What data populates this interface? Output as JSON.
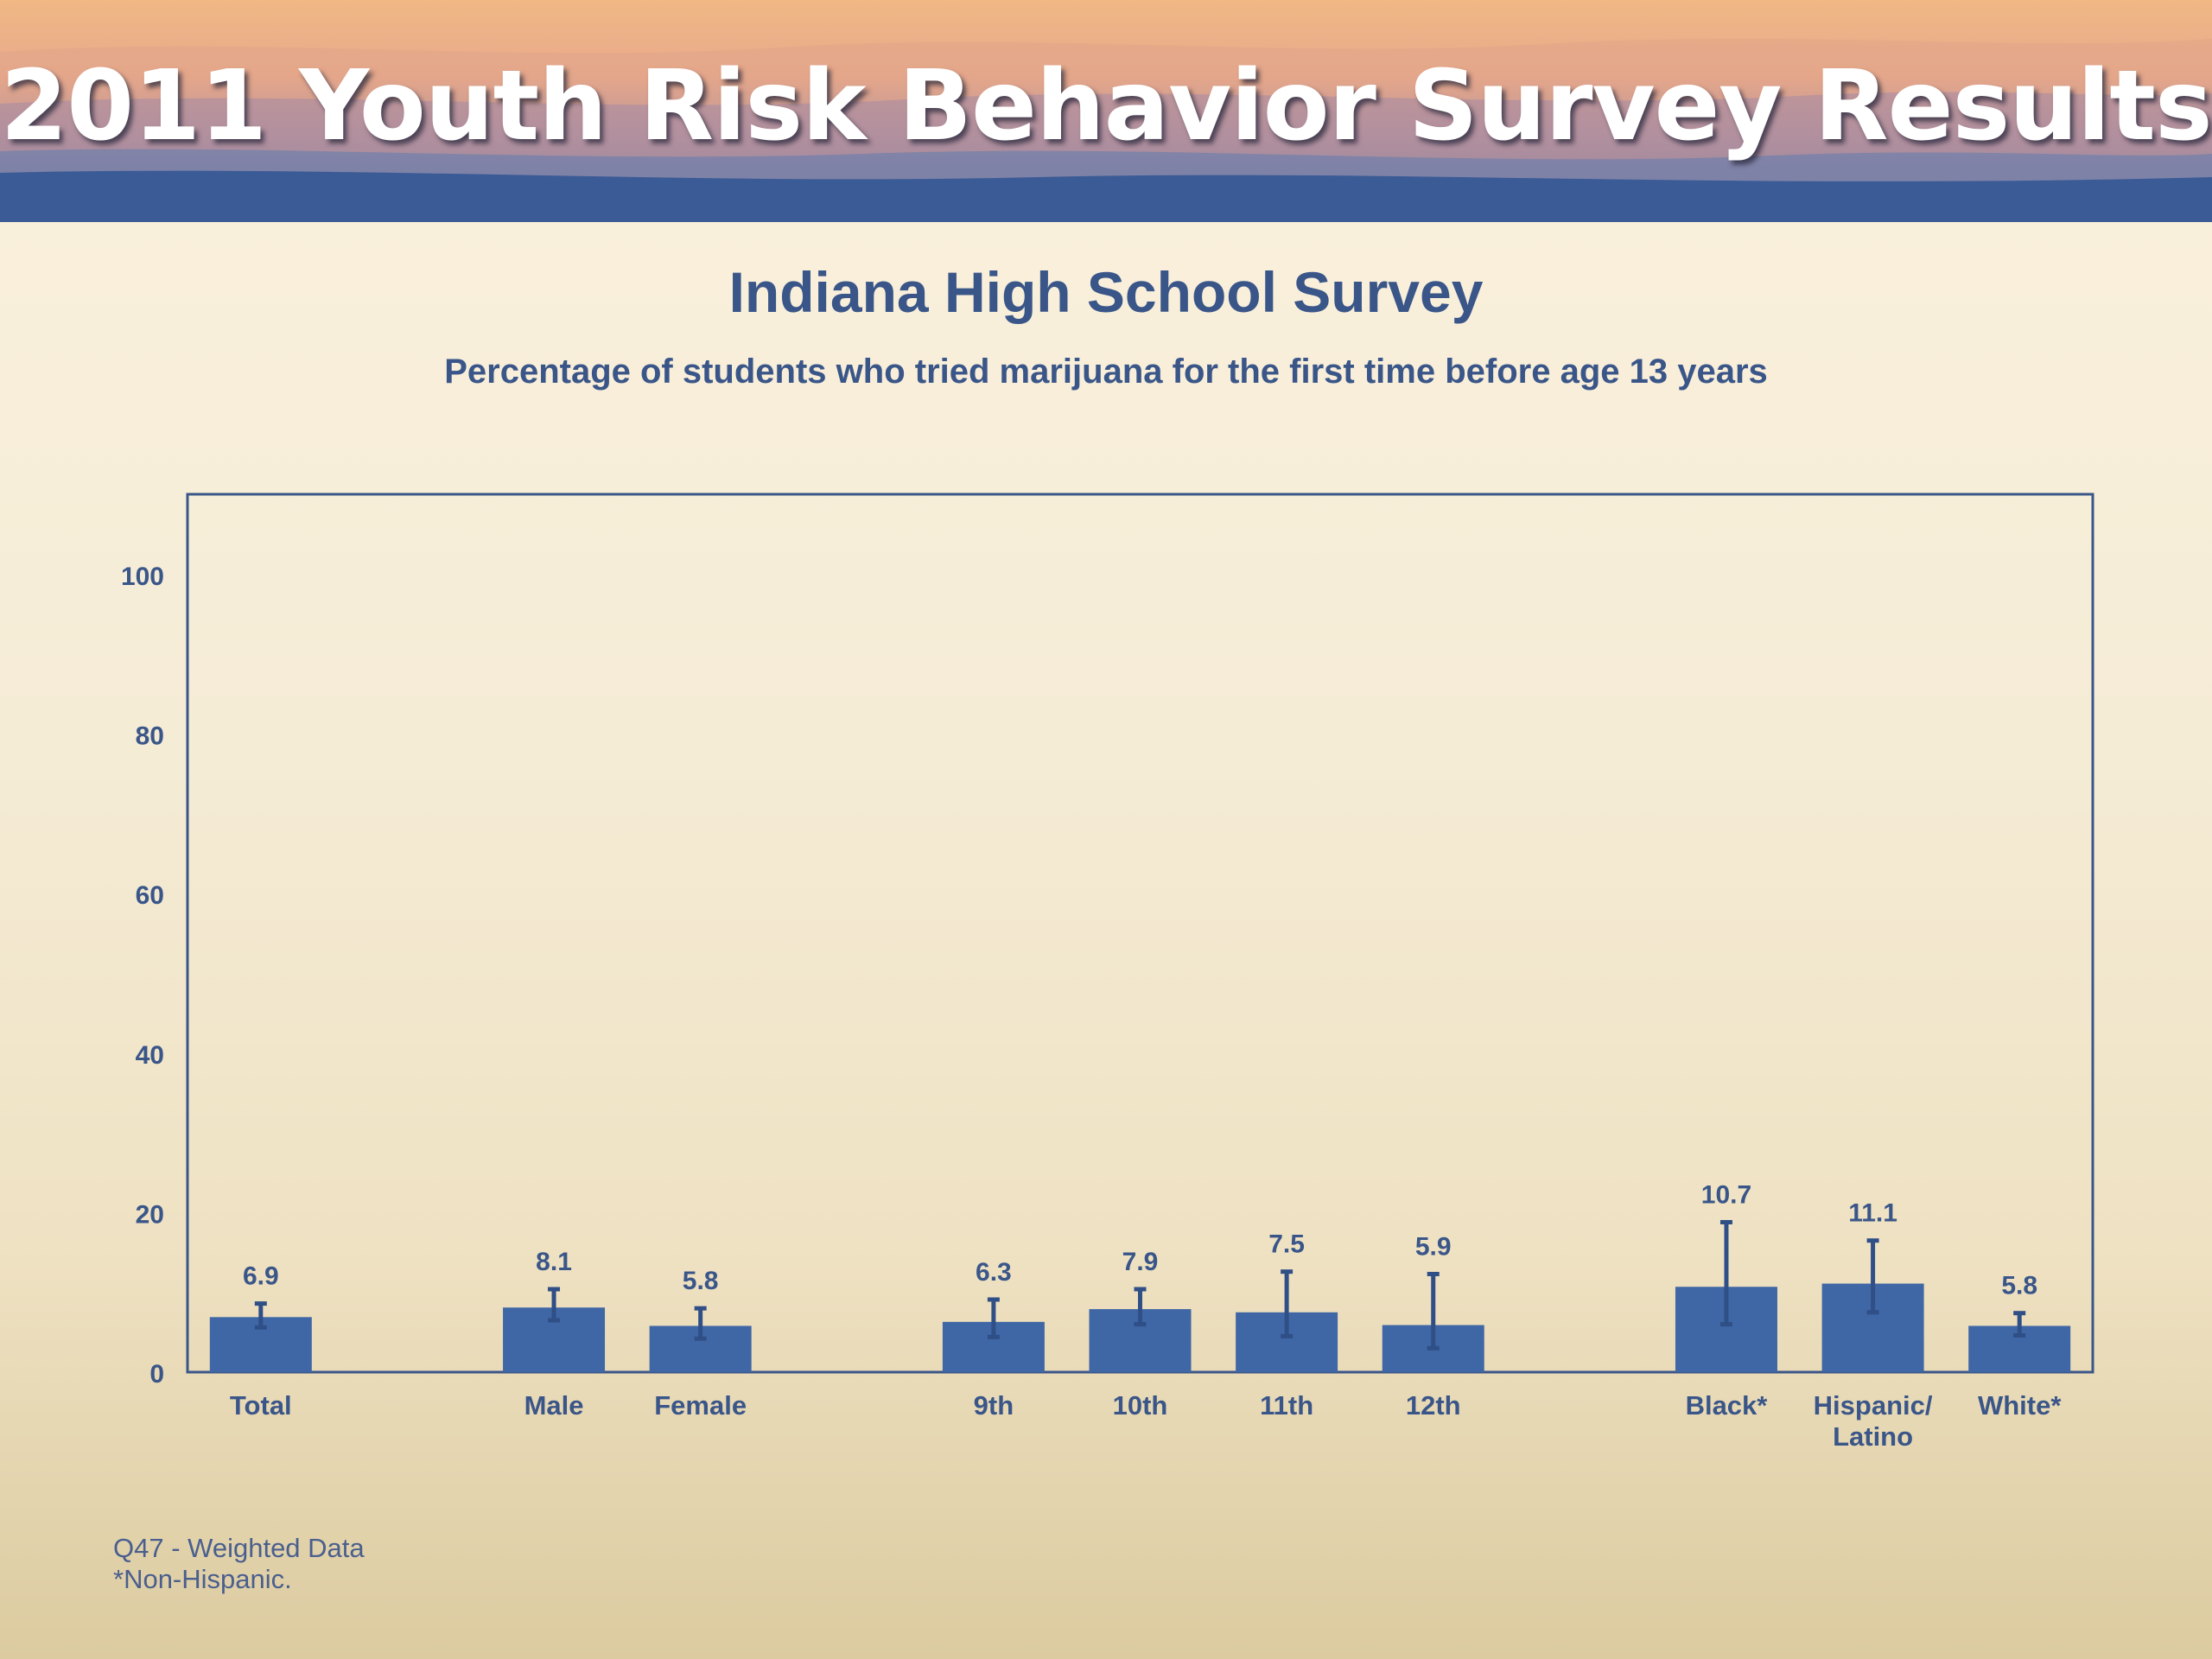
{
  "banner": {
    "title": "2011 Youth Risk Behavior Survey Results"
  },
  "chart_data": {
    "type": "bar",
    "title": "Indiana High School Survey",
    "subtitle": "Percentage of students who tried marijuana for the first time before age 13 years",
    "categories": [
      "Total",
      "Male",
      "Female",
      "9th",
      "10th",
      "11th",
      "12th",
      "Black*",
      "Hispanic/\nLatino",
      "White*"
    ],
    "values": [
      6.9,
      8.1,
      5.8,
      6.3,
      7.9,
      7.5,
      5.9,
      10.7,
      11.1,
      5.8
    ],
    "data_labels": [
      "6.9",
      "8.1",
      "5.8",
      "6.3",
      "7.9",
      "7.5",
      "5.9",
      "10.7",
      "11.1",
      "5.8"
    ],
    "error_low": [
      5.6,
      6.5,
      4.2,
      4.4,
      6.0,
      4.5,
      3.0,
      6.0,
      7.5,
      4.6
    ],
    "error_high": [
      8.6,
      10.4,
      8.0,
      9.1,
      10.4,
      12.6,
      12.3,
      18.8,
      16.5,
      7.4
    ],
    "ylim": [
      0,
      110
    ],
    "yticks": [
      0,
      20,
      40,
      60,
      80,
      100
    ],
    "xlabel": "",
    "ylabel": "",
    "grid": false,
    "bar_color": "#3f67a6"
  },
  "footnotes": [
    "Q47 - Weighted Data",
    "*Non-Hispanic."
  ],
  "colors": {
    "text": "#3a5689",
    "bar": "#3f67a6",
    "axis": "#3a5689"
  }
}
